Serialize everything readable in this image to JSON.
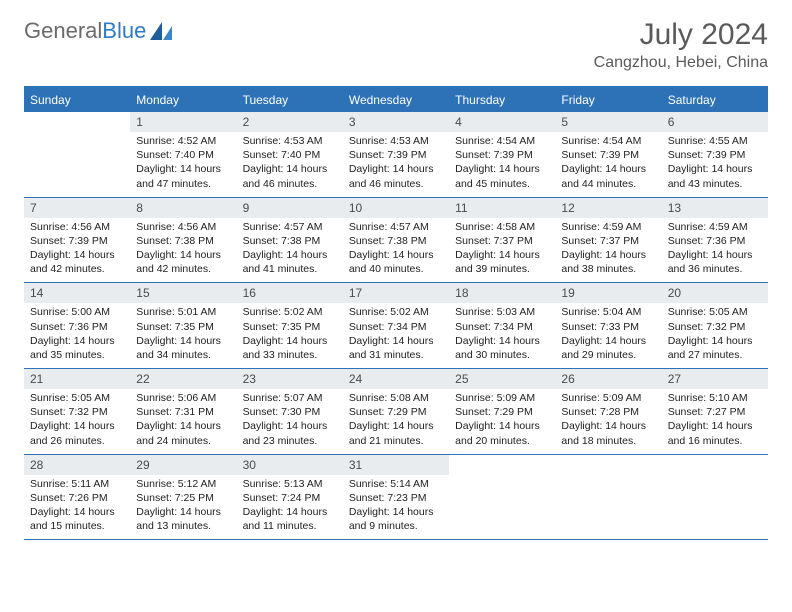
{
  "brand": {
    "name1": "General",
    "name2": "Blue"
  },
  "month_title": "July 2024",
  "location": "Cangzhou, Hebei, China",
  "weekday_bg": "#2d72b7",
  "daynum_bg": "#e9ecef",
  "text_color": "#5a5a5a",
  "weekdays": [
    "Sunday",
    "Monday",
    "Tuesday",
    "Wednesday",
    "Thursday",
    "Friday",
    "Saturday"
  ],
  "weeks": [
    [
      null,
      {
        "n": "1",
        "sr": "4:52 AM",
        "ss": "7:40 PM",
        "dl": "14 hours and 47 minutes."
      },
      {
        "n": "2",
        "sr": "4:53 AM",
        "ss": "7:40 PM",
        "dl": "14 hours and 46 minutes."
      },
      {
        "n": "3",
        "sr": "4:53 AM",
        "ss": "7:39 PM",
        "dl": "14 hours and 46 minutes."
      },
      {
        "n": "4",
        "sr": "4:54 AM",
        "ss": "7:39 PM",
        "dl": "14 hours and 45 minutes."
      },
      {
        "n": "5",
        "sr": "4:54 AM",
        "ss": "7:39 PM",
        "dl": "14 hours and 44 minutes."
      },
      {
        "n": "6",
        "sr": "4:55 AM",
        "ss": "7:39 PM",
        "dl": "14 hours and 43 minutes."
      }
    ],
    [
      {
        "n": "7",
        "sr": "4:56 AM",
        "ss": "7:39 PM",
        "dl": "14 hours and 42 minutes."
      },
      {
        "n": "8",
        "sr": "4:56 AM",
        "ss": "7:38 PM",
        "dl": "14 hours and 42 minutes."
      },
      {
        "n": "9",
        "sr": "4:57 AM",
        "ss": "7:38 PM",
        "dl": "14 hours and 41 minutes."
      },
      {
        "n": "10",
        "sr": "4:57 AM",
        "ss": "7:38 PM",
        "dl": "14 hours and 40 minutes."
      },
      {
        "n": "11",
        "sr": "4:58 AM",
        "ss": "7:37 PM",
        "dl": "14 hours and 39 minutes."
      },
      {
        "n": "12",
        "sr": "4:59 AM",
        "ss": "7:37 PM",
        "dl": "14 hours and 38 minutes."
      },
      {
        "n": "13",
        "sr": "4:59 AM",
        "ss": "7:36 PM",
        "dl": "14 hours and 36 minutes."
      }
    ],
    [
      {
        "n": "14",
        "sr": "5:00 AM",
        "ss": "7:36 PM",
        "dl": "14 hours and 35 minutes."
      },
      {
        "n": "15",
        "sr": "5:01 AM",
        "ss": "7:35 PM",
        "dl": "14 hours and 34 minutes."
      },
      {
        "n": "16",
        "sr": "5:02 AM",
        "ss": "7:35 PM",
        "dl": "14 hours and 33 minutes."
      },
      {
        "n": "17",
        "sr": "5:02 AM",
        "ss": "7:34 PM",
        "dl": "14 hours and 31 minutes."
      },
      {
        "n": "18",
        "sr": "5:03 AM",
        "ss": "7:34 PM",
        "dl": "14 hours and 30 minutes."
      },
      {
        "n": "19",
        "sr": "5:04 AM",
        "ss": "7:33 PM",
        "dl": "14 hours and 29 minutes."
      },
      {
        "n": "20",
        "sr": "5:05 AM",
        "ss": "7:32 PM",
        "dl": "14 hours and 27 minutes."
      }
    ],
    [
      {
        "n": "21",
        "sr": "5:05 AM",
        "ss": "7:32 PM",
        "dl": "14 hours and 26 minutes."
      },
      {
        "n": "22",
        "sr": "5:06 AM",
        "ss": "7:31 PM",
        "dl": "14 hours and 24 minutes."
      },
      {
        "n": "23",
        "sr": "5:07 AM",
        "ss": "7:30 PM",
        "dl": "14 hours and 23 minutes."
      },
      {
        "n": "24",
        "sr": "5:08 AM",
        "ss": "7:29 PM",
        "dl": "14 hours and 21 minutes."
      },
      {
        "n": "25",
        "sr": "5:09 AM",
        "ss": "7:29 PM",
        "dl": "14 hours and 20 minutes."
      },
      {
        "n": "26",
        "sr": "5:09 AM",
        "ss": "7:28 PM",
        "dl": "14 hours and 18 minutes."
      },
      {
        "n": "27",
        "sr": "5:10 AM",
        "ss": "7:27 PM",
        "dl": "14 hours and 16 minutes."
      }
    ],
    [
      {
        "n": "28",
        "sr": "5:11 AM",
        "ss": "7:26 PM",
        "dl": "14 hours and 15 minutes."
      },
      {
        "n": "29",
        "sr": "5:12 AM",
        "ss": "7:25 PM",
        "dl": "14 hours and 13 minutes."
      },
      {
        "n": "30",
        "sr": "5:13 AM",
        "ss": "7:24 PM",
        "dl": "14 hours and 11 minutes."
      },
      {
        "n": "31",
        "sr": "5:14 AM",
        "ss": "7:23 PM",
        "dl": "14 hours and 9 minutes."
      },
      null,
      null,
      null
    ]
  ],
  "labels": {
    "sunrise": "Sunrise:",
    "sunset": "Sunset:",
    "daylight": "Daylight:"
  }
}
